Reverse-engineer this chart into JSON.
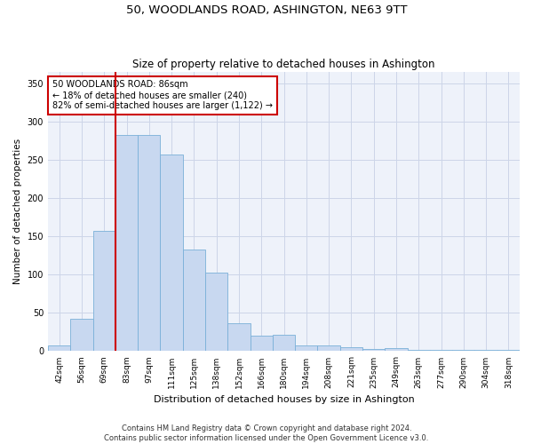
{
  "title": "50, WOODLANDS ROAD, ASHINGTON, NE63 9TT",
  "subtitle": "Size of property relative to detached houses in Ashington",
  "xlabel": "Distribution of detached houses by size in Ashington",
  "ylabel": "Number of detached properties",
  "categories": [
    "42sqm",
    "56sqm",
    "69sqm",
    "83sqm",
    "97sqm",
    "111sqm",
    "125sqm",
    "138sqm",
    "152sqm",
    "166sqm",
    "180sqm",
    "194sqm",
    "208sqm",
    "221sqm",
    "235sqm",
    "249sqm",
    "263sqm",
    "277sqm",
    "290sqm",
    "304sqm",
    "318sqm"
  ],
  "values": [
    8,
    42,
    157,
    283,
    283,
    257,
    133,
    103,
    37,
    20,
    21,
    8,
    7,
    5,
    3,
    4,
    2,
    2,
    2,
    2,
    2
  ],
  "bar_color": "#c8d8f0",
  "bar_edge_color": "#7ab0d8",
  "grid_color": "#ccd5e8",
  "background_color": "#eef2fa",
  "vline_color": "#cc0000",
  "annotation_text": "50 WOODLANDS ROAD: 86sqm\n← 18% of detached houses are smaller (240)\n82% of semi-detached houses are larger (1,122) →",
  "annotation_box_color": "white",
  "annotation_box_edge_color": "#cc0000",
  "ylim": [
    0,
    365
  ],
  "yticks": [
    0,
    50,
    100,
    150,
    200,
    250,
    300,
    350
  ],
  "title_fontsize": 9.5,
  "subtitle_fontsize": 8.5,
  "ylabel_fontsize": 7.5,
  "xlabel_fontsize": 8,
  "tick_fontsize": 6.5,
  "footer": "Contains HM Land Registry data © Crown copyright and database right 2024.\nContains public sector information licensed under the Open Government Licence v3.0."
}
